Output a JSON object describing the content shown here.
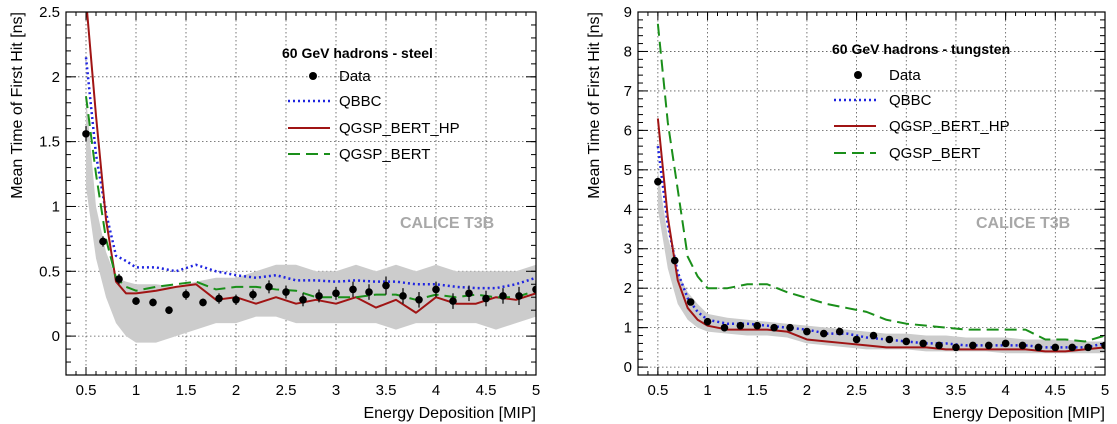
{
  "chart_data": [
    {
      "type": "line",
      "title": "60 GeV hadrons - steel",
      "watermark": "CALICE T3B",
      "xlabel": "Energy Deposition [MIP]",
      "ylabel": "Mean Time of First Hit [ns]",
      "xlim": [
        0.3,
        5.0
      ],
      "ylim": [
        -0.3,
        2.5
      ],
      "xticks": [
        "0.5",
        "1",
        "1.5",
        "2",
        "2.5",
        "3",
        "3.5",
        "4",
        "4.5",
        "5"
      ],
      "xtick_values": [
        0.5,
        1,
        1.5,
        2,
        2.5,
        3,
        3.5,
        4,
        4.5,
        5
      ],
      "yticks": [
        "0",
        "0.5",
        "1",
        "1.5",
        "2",
        "2.5"
      ],
      "ytick_values": [
        0,
        0.5,
        1,
        1.5,
        2,
        2.5
      ],
      "grid": true,
      "legend_position": "top-right",
      "band": {
        "color": "#cccccc",
        "x": [
          0.5,
          0.6,
          0.7,
          0.8,
          0.9,
          1.0,
          1.2,
          1.4,
          1.6,
          1.8,
          2.0,
          2.2,
          2.4,
          2.6,
          2.8,
          3.0,
          3.2,
          3.4,
          3.6,
          3.8,
          4.0,
          4.2,
          4.4,
          4.6,
          4.8,
          5.0
        ],
        "upper": [
          1.85,
          1.0,
          0.65,
          0.45,
          0.42,
          0.4,
          0.4,
          0.38,
          0.42,
          0.45,
          0.45,
          0.5,
          0.55,
          0.55,
          0.5,
          0.5,
          0.55,
          0.5,
          0.55,
          0.5,
          0.55,
          0.5,
          0.5,
          0.5,
          0.5,
          0.55
        ],
        "lower": [
          1.15,
          0.6,
          0.3,
          0.1,
          0.0,
          -0.05,
          -0.05,
          0.0,
          0.05,
          0.1,
          0.1,
          0.15,
          0.15,
          0.1,
          0.1,
          0.1,
          0.1,
          0.1,
          0.05,
          0.1,
          0.1,
          0.1,
          0.1,
          0.05,
          0.1,
          0.15
        ]
      },
      "series": [
        {
          "name": "QBBC",
          "color": "#1f24e0",
          "style": "dotted",
          "x": [
            0.5,
            0.6,
            0.7,
            0.8,
            0.9,
            1.0,
            1.2,
            1.4,
            1.6,
            1.8,
            2.0,
            2.2,
            2.4,
            2.6,
            2.8,
            3.0,
            3.2,
            3.4,
            3.6,
            3.8,
            4.0,
            4.2,
            4.4,
            4.6,
            4.8,
            5.0
          ],
          "y": [
            2.15,
            1.4,
            0.95,
            0.62,
            0.58,
            0.53,
            0.53,
            0.5,
            0.55,
            0.5,
            0.47,
            0.45,
            0.47,
            0.43,
            0.43,
            0.42,
            0.43,
            0.42,
            0.42,
            0.4,
            0.4,
            0.38,
            0.37,
            0.37,
            0.4,
            0.45
          ]
        },
        {
          "name": "QGSP_BERT_HP",
          "color": "#a01414",
          "style": "solid",
          "x": [
            0.5,
            0.6,
            0.7,
            0.8,
            0.9,
            1.0,
            1.2,
            1.4,
            1.6,
            1.8,
            2.0,
            2.2,
            2.4,
            2.6,
            2.8,
            3.0,
            3.2,
            3.4,
            3.6,
            3.8,
            4.0,
            4.2,
            4.4,
            4.6,
            4.8,
            5.0
          ],
          "y": [
            2.6,
            1.7,
            0.9,
            0.42,
            0.33,
            0.33,
            0.35,
            0.38,
            0.4,
            0.28,
            0.3,
            0.25,
            0.3,
            0.25,
            0.28,
            0.25,
            0.3,
            0.22,
            0.28,
            0.18,
            0.3,
            0.25,
            0.25,
            0.3,
            0.28,
            0.33
          ]
        },
        {
          "name": "QGSP_BERT",
          "color": "#1a8f1a",
          "style": "dashed",
          "x": [
            0.5,
            0.6,
            0.7,
            0.8,
            0.9,
            1.0,
            1.2,
            1.4,
            1.6,
            1.8,
            2.0,
            2.2,
            2.4,
            2.6,
            2.8,
            3.0,
            3.2,
            3.4,
            3.6,
            3.8,
            4.0,
            4.2,
            4.4,
            4.6,
            4.8,
            5.0
          ],
          "y": [
            1.85,
            1.25,
            0.75,
            0.45,
            0.38,
            0.35,
            0.38,
            0.4,
            0.42,
            0.36,
            0.38,
            0.38,
            0.36,
            0.35,
            0.3,
            0.3,
            0.3,
            0.32,
            0.32,
            0.28,
            0.32,
            0.3,
            0.32,
            0.3,
            0.3,
            0.35
          ]
        }
      ],
      "data_points": {
        "name": "Data",
        "x": [
          0.5,
          0.67,
          0.83,
          1.0,
          1.17,
          1.33,
          1.5,
          1.67,
          1.83,
          2.0,
          2.17,
          2.33,
          2.5,
          2.67,
          2.83,
          3.0,
          3.17,
          3.33,
          3.5,
          3.67,
          3.83,
          4.0,
          4.17,
          4.33,
          4.5,
          4.67,
          4.83,
          5.0
        ],
        "y": [
          1.56,
          0.73,
          0.44,
          0.27,
          0.26,
          0.2,
          0.32,
          0.26,
          0.29,
          0.28,
          0.32,
          0.38,
          0.34,
          0.28,
          0.31,
          0.33,
          0.36,
          0.34,
          0.39,
          0.31,
          0.28,
          0.36,
          0.27,
          0.33,
          0.29,
          0.31,
          0.31,
          0.36
        ],
        "err": [
          0.06,
          0.04,
          0.04,
          0.03,
          0.03,
          0.03,
          0.04,
          0.03,
          0.04,
          0.04,
          0.04,
          0.05,
          0.05,
          0.05,
          0.05,
          0.05,
          0.06,
          0.06,
          0.07,
          0.06,
          0.06,
          0.06,
          0.06,
          0.06,
          0.06,
          0.06,
          0.07,
          0.07
        ]
      },
      "legend": [
        "Data",
        "QBBC",
        "QGSP_BERT_HP",
        "QGSP_BERT"
      ]
    },
    {
      "type": "line",
      "title": "60 GeV hadrons - tungsten",
      "watermark": "CALICE T3B",
      "xlabel": "Energy Deposition [MIP]",
      "ylabel": "Mean Time of First Hit [ns]",
      "xlim": [
        0.3,
        5.0
      ],
      "ylim": [
        -0.2,
        9.0
      ],
      "xticks": [
        "0.5",
        "1",
        "1.5",
        "2",
        "2.5",
        "3",
        "3.5",
        "4",
        "4.5",
        "5"
      ],
      "xtick_values": [
        0.5,
        1,
        1.5,
        2,
        2.5,
        3,
        3.5,
        4,
        4.5,
        5
      ],
      "yticks": [
        "0",
        "1",
        "2",
        "3",
        "4",
        "5",
        "6",
        "7",
        "8",
        "9"
      ],
      "ytick_values": [
        0,
        1,
        2,
        3,
        4,
        5,
        6,
        7,
        8,
        9
      ],
      "grid": true,
      "legend_position": "top-right",
      "band": {
        "color": "#cccccc",
        "x": [
          0.5,
          0.6,
          0.7,
          0.8,
          0.9,
          1.0,
          1.2,
          1.4,
          1.6,
          1.8,
          2.0,
          2.2,
          2.4,
          2.6,
          2.8,
          3.0,
          3.2,
          3.4,
          3.6,
          3.8,
          4.0,
          4.2,
          4.4,
          4.6,
          4.8,
          5.0
        ],
        "upper": [
          5.0,
          3.3,
          2.4,
          1.9,
          1.6,
          1.35,
          1.25,
          1.2,
          1.15,
          1.1,
          1.05,
          1.0,
          0.95,
          0.9,
          0.85,
          0.85,
          0.8,
          0.8,
          0.75,
          0.75,
          0.75,
          0.7,
          0.7,
          0.7,
          0.65,
          0.65
        ],
        "lower": [
          4.0,
          2.5,
          1.6,
          1.2,
          1.0,
          0.9,
          0.85,
          0.8,
          0.8,
          0.75,
          0.6,
          0.55,
          0.5,
          0.45,
          0.45,
          0.45,
          0.4,
          0.4,
          0.4,
          0.4,
          0.35,
          0.35,
          0.35,
          0.35,
          0.35,
          0.35
        ]
      },
      "series": [
        {
          "name": "QBBC",
          "color": "#1f24e0",
          "style": "dotted",
          "x": [
            0.5,
            0.6,
            0.7,
            0.8,
            0.9,
            1.0,
            1.2,
            1.4,
            1.6,
            1.8,
            2.0,
            2.2,
            2.4,
            2.6,
            2.8,
            3.0,
            3.2,
            3.4,
            3.6,
            3.8,
            4.0,
            4.2,
            4.4,
            4.6,
            4.8,
            5.0
          ],
          "y": [
            5.6,
            3.6,
            2.4,
            1.75,
            1.4,
            1.2,
            1.1,
            1.1,
            1.05,
            1.0,
            0.95,
            0.85,
            0.85,
            0.75,
            0.7,
            0.65,
            0.6,
            0.6,
            0.55,
            0.55,
            0.55,
            0.55,
            0.5,
            0.5,
            0.5,
            0.6
          ]
        },
        {
          "name": "QGSP_BERT_HP",
          "color": "#a01414",
          "style": "solid",
          "x": [
            0.5,
            0.6,
            0.7,
            0.8,
            0.9,
            1.0,
            1.2,
            1.4,
            1.6,
            1.8,
            2.0,
            2.2,
            2.4,
            2.6,
            2.8,
            3.0,
            3.2,
            3.4,
            3.6,
            3.8,
            4.0,
            4.2,
            4.4,
            4.6,
            4.8,
            5.0
          ],
          "y": [
            6.3,
            3.8,
            2.2,
            1.5,
            1.2,
            1.05,
            0.95,
            0.95,
            0.95,
            0.9,
            0.7,
            0.65,
            0.6,
            0.55,
            0.5,
            0.5,
            0.5,
            0.45,
            0.45,
            0.45,
            0.45,
            0.45,
            0.4,
            0.4,
            0.45,
            0.5
          ]
        },
        {
          "name": "QGSP_BERT",
          "color": "#1a8f1a",
          "style": "dashed",
          "x": [
            0.5,
            0.6,
            0.7,
            0.8,
            0.9,
            1.0,
            1.2,
            1.4,
            1.6,
            1.8,
            2.0,
            2.2,
            2.4,
            2.6,
            2.8,
            3.0,
            3.2,
            3.4,
            3.6,
            3.8,
            4.0,
            4.2,
            4.4,
            4.6,
            4.8,
            5.0
          ],
          "y": [
            8.7,
            6.2,
            4.5,
            2.8,
            2.3,
            2.0,
            2.0,
            2.1,
            2.1,
            1.9,
            1.75,
            1.6,
            1.5,
            1.4,
            1.2,
            1.1,
            1.05,
            1.0,
            0.95,
            0.95,
            0.95,
            0.95,
            0.7,
            0.7,
            0.65,
            0.8
          ]
        }
      ],
      "data_points": {
        "name": "Data",
        "x": [
          0.5,
          0.67,
          0.83,
          1.0,
          1.17,
          1.33,
          1.5,
          1.67,
          1.83,
          2.0,
          2.17,
          2.33,
          2.5,
          2.67,
          2.83,
          3.0,
          3.17,
          3.33,
          3.5,
          3.67,
          3.83,
          4.0,
          4.17,
          4.33,
          4.5,
          4.67,
          4.83,
          5.0
        ],
        "y": [
          4.7,
          2.7,
          1.65,
          1.15,
          1.0,
          1.05,
          1.05,
          1.0,
          1.0,
          0.9,
          0.85,
          0.9,
          0.7,
          0.8,
          0.7,
          0.65,
          0.6,
          0.55,
          0.5,
          0.55,
          0.55,
          0.6,
          0.55,
          0.5,
          0.5,
          0.5,
          0.5,
          0.55
        ],
        "err": [
          0.1,
          0.08,
          0.06,
          0.05,
          0.05,
          0.05,
          0.05,
          0.05,
          0.05,
          0.05,
          0.05,
          0.05,
          0.05,
          0.05,
          0.05,
          0.05,
          0.05,
          0.05,
          0.05,
          0.05,
          0.05,
          0.05,
          0.05,
          0.05,
          0.05,
          0.05,
          0.05,
          0.05
        ]
      },
      "legend": [
        "Data",
        "QBBC",
        "QGSP_BERT_HP",
        "QGSP_BERT"
      ]
    }
  ]
}
